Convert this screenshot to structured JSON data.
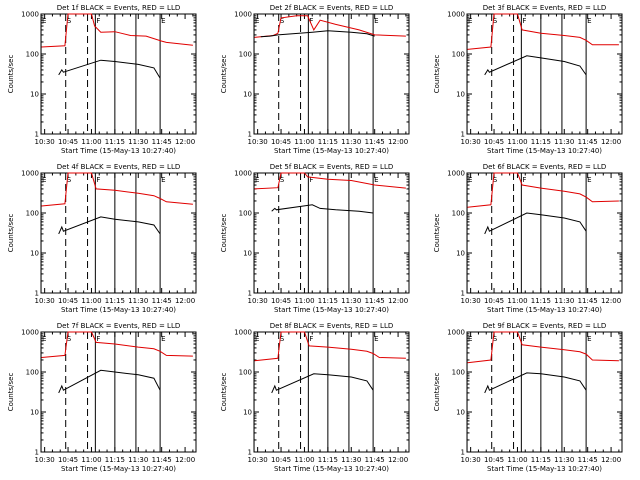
{
  "chart_data": [
    {
      "type": "line",
      "title": "Det 1f BLACK = Events, RED = LLD",
      "xlabel": "Start Time (15-May-13 10:27:40)",
      "ylabel": "Counts/sec",
      "xticks": [
        "10:30",
        "10:45",
        "11:00",
        "11:15",
        "11:30",
        "11:45",
        "12:00"
      ],
      "xlim": [
        "10:27:40",
        "12:07:00"
      ],
      "ylim": [
        1,
        1000
      ],
      "yscale": "log",
      "yticks": [
        "1",
        "10",
        "100",
        "1000"
      ],
      "markers": [
        "E",
        "S",
        "F",
        "E"
      ],
      "series": [
        {
          "name": "LLD",
          "color": "#e00000",
          "points": [
            [
              "10:28",
              150
            ],
            [
              "10:43",
              160
            ],
            [
              "10:45",
              1000
            ],
            [
              "10:55",
              1000
            ],
            [
              "11:00",
              1000
            ],
            [
              "11:02",
              500
            ],
            [
              "11:06",
              350
            ],
            [
              "11:15",
              360
            ],
            [
              "11:25",
              290
            ],
            [
              "11:35",
              280
            ],
            [
              "11:45",
              210
            ],
            [
              "11:48",
              195
            ],
            [
              "12:05",
              165
            ]
          ]
        },
        {
          "name": "Events",
          "color": "#000000",
          "points": [
            [
              "10:39",
              30
            ],
            [
              "10:41",
              40
            ],
            [
              "10:42",
              35
            ],
            [
              "11:06",
              70
            ],
            [
              "11:15",
              65
            ],
            [
              "11:30",
              55
            ],
            [
              "11:40",
              45
            ],
            [
              "11:44",
              25
            ]
          ]
        }
      ]
    },
    {
      "type": "line",
      "title": "Det 2f BLACK = Events, RED = LLD",
      "xlabel": "Start Time (15-May-13 10:27:40)",
      "ylabel": "Counts/sec",
      "xticks": [
        "10:30",
        "10:45",
        "11:00",
        "11:15",
        "11:30",
        "11:45",
        "12:00"
      ],
      "xlim": [
        "10:27:40",
        "12:07:00"
      ],
      "ylim": [
        1,
        1000
      ],
      "yscale": "log",
      "yticks": [
        "1",
        "10",
        "100",
        "1000"
      ],
      "markers": [
        "E",
        "S",
        "F",
        "E"
      ],
      "series": [
        {
          "name": "LLD",
          "color": "#e00000",
          "points": [
            [
              "10:28",
              260
            ],
            [
              "10:40",
              290
            ],
            [
              "10:43",
              330
            ],
            [
              "10:45",
              800
            ],
            [
              "10:55",
              900
            ],
            [
              "11:02",
              900
            ],
            [
              "11:06",
              400
            ],
            [
              "11:10",
              700
            ],
            [
              "11:20",
              550
            ],
            [
              "11:35",
              400
            ],
            [
              "11:45",
              300
            ],
            [
              "12:05",
              280
            ]
          ]
        },
        {
          "name": "Events",
          "color": "#000000",
          "points": [
            [
              "10:32",
              270
            ],
            [
              "10:38",
              280
            ],
            [
              "10:43",
              300
            ],
            [
              "11:05",
              350
            ],
            [
              "11:15",
              380
            ],
            [
              "11:30",
              350
            ],
            [
              "11:40",
              320
            ],
            [
              "11:45",
              280
            ]
          ]
        }
      ]
    },
    {
      "type": "line",
      "title": "Det 3f BLACK = Events, RED = LLD",
      "xlabel": "Start Time (15-May-13 10:27:40)",
      "ylabel": "Counts/sec",
      "xticks": [
        "10:30",
        "10:45",
        "11:00",
        "11:15",
        "11:30",
        "11:45",
        "12:00"
      ],
      "xlim": [
        "10:27:40",
        "12:07:00"
      ],
      "ylim": [
        1,
        1000
      ],
      "yscale": "log",
      "yticks": [
        "1",
        "10",
        "100",
        "1000"
      ],
      "markers": [
        "E",
        "S",
        "F",
        "E"
      ],
      "series": [
        {
          "name": "LLD",
          "color": "#e00000",
          "points": [
            [
              "10:28",
              130
            ],
            [
              "10:43",
              150
            ],
            [
              "10:45",
              1000
            ],
            [
              "11:00",
              1000
            ],
            [
              "11:03",
              400
            ],
            [
              "11:15",
              330
            ],
            [
              "11:30",
              290
            ],
            [
              "11:40",
              260
            ],
            [
              "11:44",
              220
            ],
            [
              "11:48",
              170
            ],
            [
              "12:05",
              170
            ]
          ]
        },
        {
          "name": "Events",
          "color": "#000000",
          "points": [
            [
              "10:39",
              30
            ],
            [
              "10:41",
              40
            ],
            [
              "10:42",
              35
            ],
            [
              "11:06",
              90
            ],
            [
              "11:15",
              80
            ],
            [
              "11:30",
              65
            ],
            [
              "11:40",
              50
            ],
            [
              "11:44",
              30
            ]
          ]
        }
      ]
    },
    {
      "type": "line",
      "title": "Det 4f BLACK = Events, RED = LLD",
      "xlabel": "Start Time (15-May-13 10:27:40)",
      "ylabel": "Counts/sec",
      "xticks": [
        "10:30",
        "10:45",
        "11:00",
        "11:15",
        "11:30",
        "11:45",
        "12:00"
      ],
      "xlim": [
        "10:27:40",
        "12:07:00"
      ],
      "ylim": [
        1,
        1000
      ],
      "yscale": "log",
      "yticks": [
        "1",
        "10",
        "100",
        "1000"
      ],
      "markers": [
        "E",
        "S",
        "F",
        "E"
      ],
      "series": [
        {
          "name": "LLD",
          "color": "#e00000",
          "points": [
            [
              "10:28",
              150
            ],
            [
              "10:43",
              170
            ],
            [
              "10:45",
              1000
            ],
            [
              "11:00",
              1000
            ],
            [
              "11:03",
              400
            ],
            [
              "11:15",
              370
            ],
            [
              "11:30",
              310
            ],
            [
              "11:40",
              270
            ],
            [
              "11:44",
              230
            ],
            [
              "11:48",
              190
            ],
            [
              "12:05",
              165
            ]
          ]
        },
        {
          "name": "Events",
          "color": "#000000",
          "points": [
            [
              "10:39",
              30
            ],
            [
              "10:41",
              45
            ],
            [
              "10:42",
              35
            ],
            [
              "11:06",
              80
            ],
            [
              "11:15",
              70
            ],
            [
              "11:30",
              60
            ],
            [
              "11:40",
              50
            ],
            [
              "11:44",
              30
            ]
          ]
        }
      ]
    },
    {
      "type": "line",
      "title": "Det 5f BLACK = Events, RED = LLD",
      "xlabel": "Start Time (15-May-13 10:27:40)",
      "ylabel": "Counts/sec",
      "xticks": [
        "10:30",
        "10:45",
        "11:00",
        "11:15",
        "11:30",
        "11:45",
        "12:00"
      ],
      "xlim": [
        "10:27:40",
        "12:07:00"
      ],
      "ylim": [
        1,
        1000
      ],
      "yscale": "log",
      "yticks": [
        "1",
        "10",
        "100",
        "1000"
      ],
      "markers": [
        "E",
        "S",
        "F",
        "E"
      ],
      "series": [
        {
          "name": "LLD",
          "color": "#e00000",
          "points": [
            [
              "10:28",
              400
            ],
            [
              "10:43",
              430
            ],
            [
              "10:45",
              1000
            ],
            [
              "11:00",
              1000
            ],
            [
              "11:02",
              800
            ],
            [
              "11:15",
              700
            ],
            [
              "11:30",
              650
            ],
            [
              "11:45",
              500
            ],
            [
              "12:05",
              420
            ]
          ]
        },
        {
          "name": "Events",
          "color": "#000000",
          "points": [
            [
              "10:39",
              110
            ],
            [
              "10:41",
              130
            ],
            [
              "10:42",
              120
            ],
            [
              "11:05",
              160
            ],
            [
              "11:10",
              130
            ],
            [
              "11:20",
              120
            ],
            [
              "11:35",
              110
            ],
            [
              "11:44",
              100
            ]
          ]
        }
      ]
    },
    {
      "type": "line",
      "title": "Det 6f BLACK = Events, RED = LLD",
      "xlabel": "Start Time (15-May-13 10:27:40)",
      "ylabel": "Counts/sec",
      "xticks": [
        "10:30",
        "10:45",
        "11:00",
        "11:15",
        "11:30",
        "11:45",
        "12:00"
      ],
      "xlim": [
        "10:27:40",
        "12:07:00"
      ],
      "ylim": [
        1,
        1000
      ],
      "yscale": "log",
      "yticks": [
        "1",
        "10",
        "100",
        "1000"
      ],
      "markers": [
        "E",
        "S",
        "F",
        "E"
      ],
      "series": [
        {
          "name": "LLD",
          "color": "#e00000",
          "points": [
            [
              "10:28",
              140
            ],
            [
              "10:43",
              160
            ],
            [
              "10:45",
              1000
            ],
            [
              "11:00",
              1000
            ],
            [
              "11:03",
              500
            ],
            [
              "11:15",
              420
            ],
            [
              "11:30",
              350
            ],
            [
              "11:40",
              300
            ],
            [
              "11:44",
              250
            ],
            [
              "11:48",
              190
            ],
            [
              "12:05",
              200
            ]
          ]
        },
        {
          "name": "Events",
          "color": "#000000",
          "points": [
            [
              "10:39",
              30
            ],
            [
              "10:41",
              45
            ],
            [
              "10:42",
              35
            ],
            [
              "11:06",
              100
            ],
            [
              "11:15",
              90
            ],
            [
              "11:30",
              75
            ],
            [
              "11:40",
              60
            ],
            [
              "11:44",
              35
            ]
          ]
        }
      ]
    },
    {
      "type": "line",
      "title": "Det 7f BLACK = Events, RED = LLD",
      "xlabel": "Start Time (15-May-13 10:27:40)",
      "ylabel": "Counts/sec",
      "xticks": [
        "10:30",
        "10:45",
        "11:00",
        "11:15",
        "11:30",
        "11:45",
        "12:00"
      ],
      "xlim": [
        "10:27:40",
        "12:07:00"
      ],
      "ylim": [
        1,
        1000
      ],
      "yscale": "log",
      "yticks": [
        "1",
        "10",
        "100",
        "1000"
      ],
      "markers": [
        "E",
        "S",
        "F",
        "E"
      ],
      "series": [
        {
          "name": "LLD",
          "color": "#e00000",
          "points": [
            [
              "10:28",
              230
            ],
            [
              "10:43",
              260
            ],
            [
              "10:45",
              1000
            ],
            [
              "11:00",
              1000
            ],
            [
              "11:03",
              550
            ],
            [
              "11:15",
              500
            ],
            [
              "11:30",
              420
            ],
            [
              "11:40",
              380
            ],
            [
              "11:44",
              330
            ],
            [
              "11:48",
              260
            ],
            [
              "12:05",
              250
            ]
          ]
        },
        {
          "name": "Events",
          "color": "#000000",
          "points": [
            [
              "10:39",
              30
            ],
            [
              "10:41",
              45
            ],
            [
              "10:42",
              35
            ],
            [
              "11:06",
              110
            ],
            [
              "11:15",
              100
            ],
            [
              "11:30",
              85
            ],
            [
              "11:40",
              70
            ],
            [
              "11:44",
              35
            ]
          ]
        }
      ]
    },
    {
      "type": "line",
      "title": "Det 8f BLACK = Events, RED = LLD",
      "xlabel": "Start Time (15-May-13 10:27:40)",
      "ylabel": "Counts/sec",
      "xticks": [
        "10:30",
        "10:45",
        "11:00",
        "11:15",
        "11:30",
        "11:45",
        "12:00"
      ],
      "xlim": [
        "10:27:40",
        "12:07:00"
      ],
      "ylim": [
        1,
        1000
      ],
      "yscale": "log",
      "yticks": [
        "1",
        "10",
        "100",
        "1000"
      ],
      "markers": [
        "E",
        "S",
        "F",
        "E"
      ],
      "series": [
        {
          "name": "LLD",
          "color": "#e00000",
          "points": [
            [
              "10:28",
              190
            ],
            [
              "10:43",
              220
            ],
            [
              "10:45",
              1000
            ],
            [
              "11:00",
              1000
            ],
            [
              "11:03",
              450
            ],
            [
              "11:15",
              420
            ],
            [
              "11:30",
              370
            ],
            [
              "11:40",
              330
            ],
            [
              "11:44",
              290
            ],
            [
              "11:48",
              230
            ],
            [
              "12:05",
              220
            ]
          ]
        },
        {
          "name": "Events",
          "color": "#000000",
          "points": [
            [
              "10:39",
              30
            ],
            [
              "10:41",
              45
            ],
            [
              "10:42",
              35
            ],
            [
              "11:06",
              90
            ],
            [
              "11:15",
              85
            ],
            [
              "11:30",
              75
            ],
            [
              "11:40",
              60
            ],
            [
              "11:44",
              35
            ]
          ]
        }
      ]
    },
    {
      "type": "line",
      "title": "Det 9f BLACK = Events, RED = LLD",
      "xlabel": "Start Time (15-May-13 10:27:40)",
      "ylabel": "Counts/sec",
      "xticks": [
        "10:30",
        "10:45",
        "11:00",
        "11:15",
        "11:30",
        "11:45",
        "12:00"
      ],
      "xlim": [
        "10:27:40",
        "12:07:00"
      ],
      "ylim": [
        1,
        1000
      ],
      "yscale": "log",
      "yticks": [
        "1",
        "10",
        "100",
        "1000"
      ],
      "markers": [
        "E",
        "S",
        "F",
        "E"
      ],
      "series": [
        {
          "name": "LLD",
          "color": "#e00000",
          "points": [
            [
              "10:28",
              170
            ],
            [
              "10:43",
              200
            ],
            [
              "10:45",
              1000
            ],
            [
              "11:00",
              1000
            ],
            [
              "11:03",
              480
            ],
            [
              "11:15",
              420
            ],
            [
              "11:30",
              360
            ],
            [
              "11:40",
              320
            ],
            [
              "11:44",
              280
            ],
            [
              "11:48",
              200
            ],
            [
              "12:05",
              190
            ]
          ]
        },
        {
          "name": "Events",
          "color": "#000000",
          "points": [
            [
              "10:39",
              30
            ],
            [
              "10:41",
              45
            ],
            [
              "10:42",
              35
            ],
            [
              "11:06",
              95
            ],
            [
              "11:15",
              90
            ],
            [
              "11:30",
              75
            ],
            [
              "11:40",
              60
            ],
            [
              "11:44",
              35
            ]
          ]
        }
      ]
    }
  ]
}
